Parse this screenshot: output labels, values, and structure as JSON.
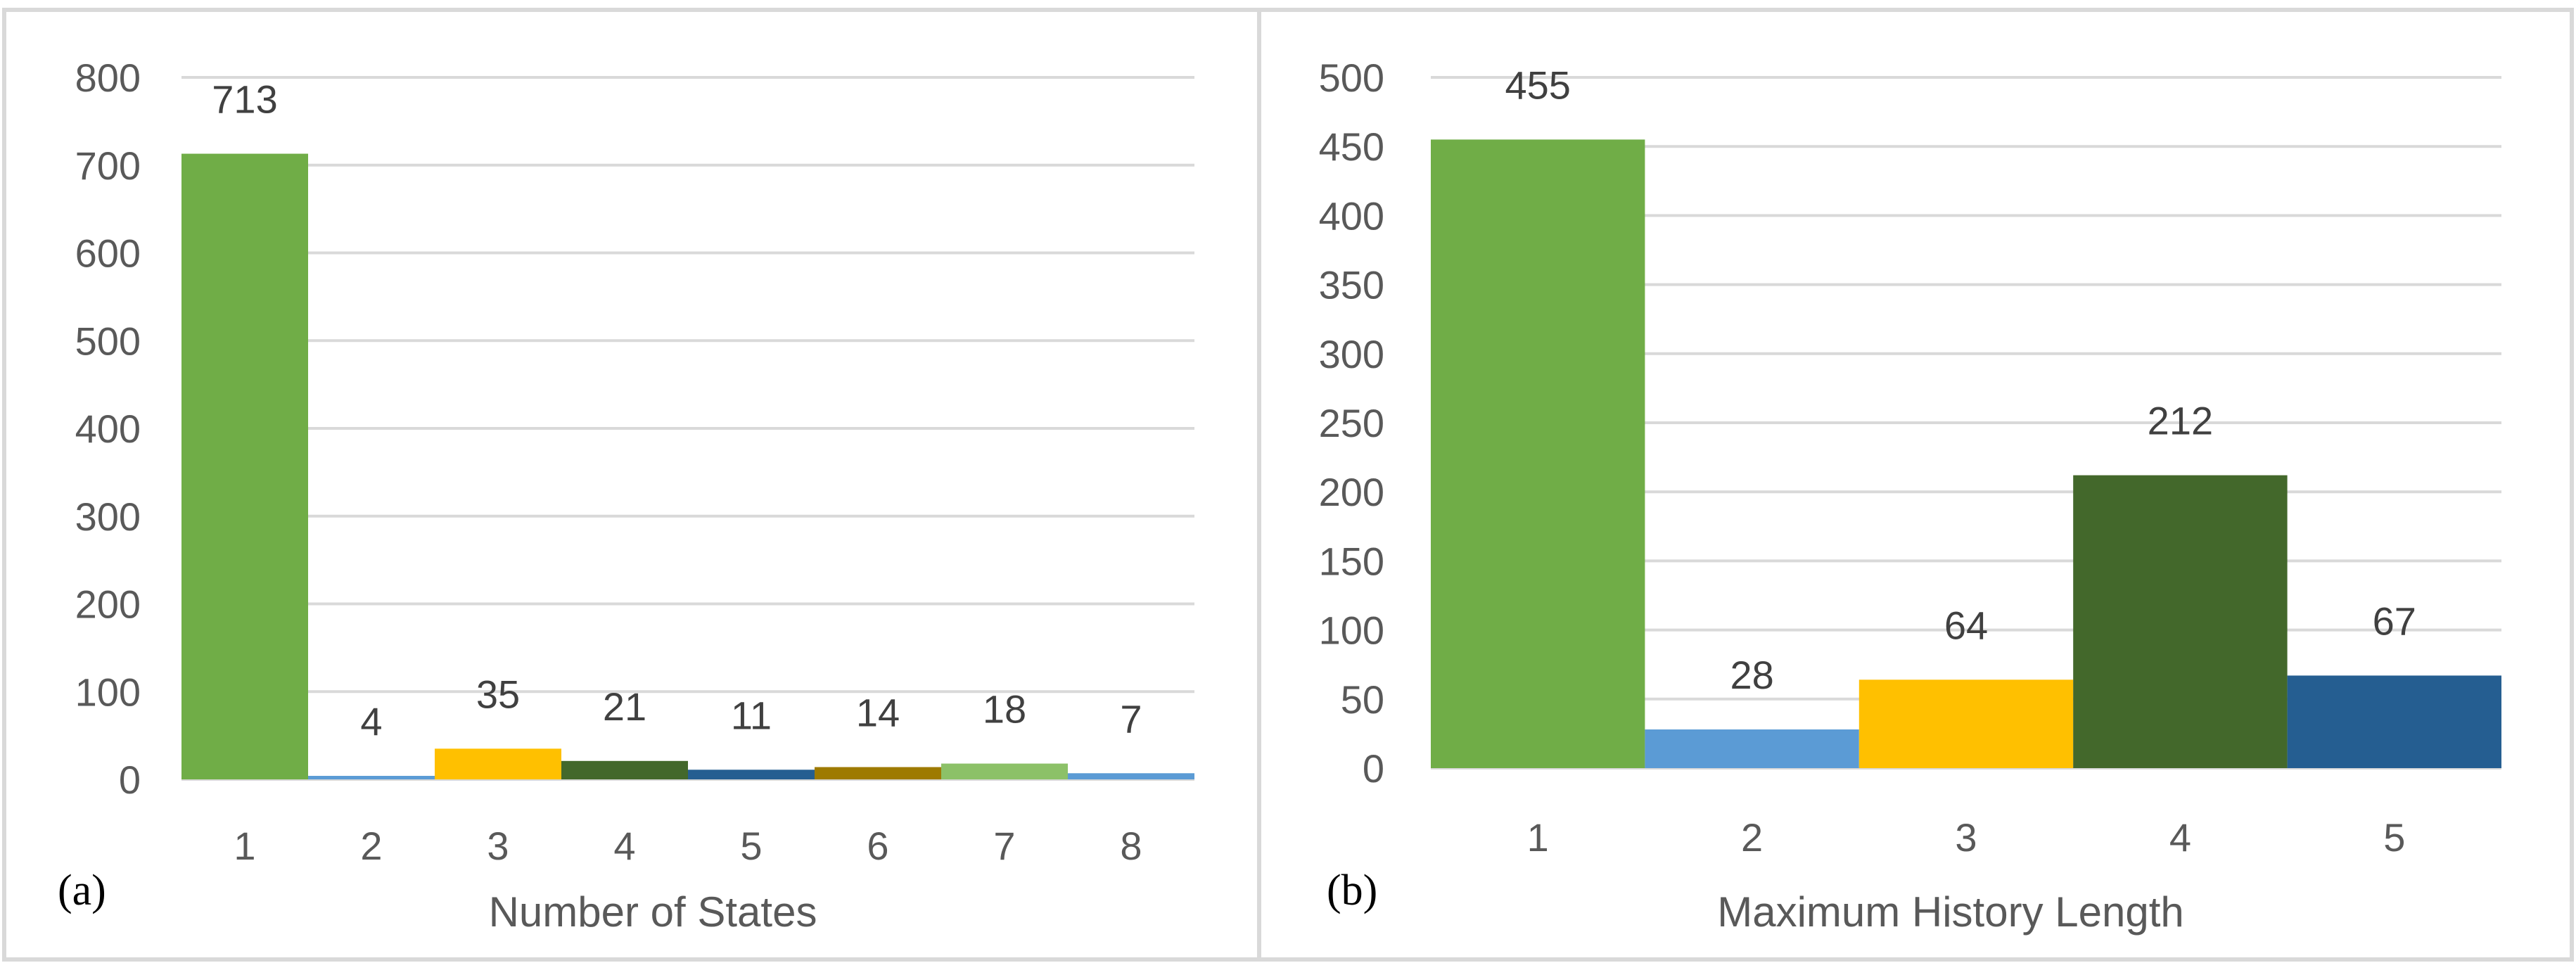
{
  "chart_data": [
    {
      "type": "bar",
      "panel_label": "(a)",
      "xlabel": "Number of States",
      "ylabel": "",
      "categories": [
        "1",
        "2",
        "3",
        "4",
        "5",
        "6",
        "7",
        "8"
      ],
      "values": [
        713,
        4,
        35,
        21,
        11,
        14,
        18,
        7
      ],
      "data_labels": [
        "713",
        "4",
        "35",
        "21",
        "11",
        "14",
        "18",
        "7"
      ],
      "colors": [
        "#70ad47",
        "#5b9bd5",
        "#ffc000",
        "#43682b",
        "#255e91",
        "#9e7a00",
        "#8cc168",
        "#5b9bd5"
      ],
      "ylim": [
        0,
        800
      ],
      "yticks": [
        0,
        100,
        200,
        300,
        400,
        500,
        600,
        700,
        800
      ],
      "ytick_labels": [
        "0",
        "100",
        "200",
        "300",
        "400",
        "500",
        "600",
        "700",
        "800"
      ],
      "grid": true,
      "legend": "none"
    },
    {
      "type": "bar",
      "panel_label": "(b)",
      "xlabel": "Maximum History Length",
      "ylabel": "",
      "categories": [
        "1",
        "2",
        "3",
        "4",
        "5"
      ],
      "values": [
        455,
        28,
        64,
        212,
        67
      ],
      "data_labels": [
        "455",
        "28",
        "64",
        "212",
        "67"
      ],
      "colors": [
        "#70ad47",
        "#5b9bd5",
        "#ffc000",
        "#43682b",
        "#255e91"
      ],
      "ylim": [
        0,
        500
      ],
      "yticks": [
        0,
        50,
        100,
        150,
        200,
        250,
        300,
        350,
        400,
        450,
        500
      ],
      "ytick_labels": [
        "0",
        "50",
        "100",
        "150",
        "200",
        "250",
        "300",
        "350",
        "400",
        "450",
        "500"
      ],
      "grid": true,
      "legend": "none"
    }
  ]
}
